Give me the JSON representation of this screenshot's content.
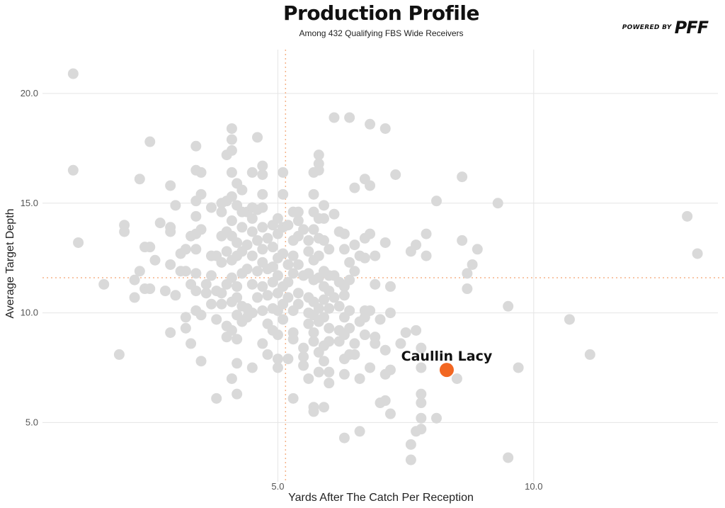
{
  "header": {
    "title": "Production Profile",
    "subtitle": "Among 432 Qualifying FBS Wide Receivers",
    "brand_prefix": "POWERED BY",
    "brand_logo": "PFF"
  },
  "chart_data": {
    "type": "scatter",
    "title": "Production Profile",
    "subtitle": "Among 432 Qualifying FBS Wide Receivers",
    "xlabel": "Yards After The Catch Per Reception",
    "ylabel": "Average Target Depth",
    "xlim": [
      0.4,
      13.6
    ],
    "ylim": [
      2.3,
      22.0
    ],
    "x_ticks": [
      5.0,
      10.0
    ],
    "x_tick_labels": [
      "5.0",
      "10.0"
    ],
    "y_ticks": [
      5.0,
      10.0,
      15.0,
      20.0
    ],
    "y_tick_labels": [
      "5.0",
      "10.0",
      "15.0",
      "20.0"
    ],
    "grid": true,
    "reference_lines": {
      "x": 5.15,
      "y": 11.6
    },
    "colors": {
      "points": "#d9d9d9",
      "highlight": "#f26722",
      "reference": "#f5b48a",
      "grid": "#e5e5e5"
    },
    "highlight": {
      "name": "Caullin Lacy",
      "x": 8.3,
      "y": 7.4
    },
    "points": [
      [
        1.0,
        20.9
      ],
      [
        1.0,
        16.5
      ],
      [
        1.1,
        13.2
      ],
      [
        1.6,
        11.3
      ],
      [
        1.9,
        8.1
      ],
      [
        2.0,
        14.0
      ],
      [
        2.0,
        13.7
      ],
      [
        2.2,
        11.5
      ],
      [
        2.2,
        10.7
      ],
      [
        2.3,
        11.9
      ],
      [
        2.3,
        16.1
      ],
      [
        2.4,
        11.1
      ],
      [
        2.4,
        13.0
      ],
      [
        2.5,
        17.8
      ],
      [
        2.5,
        13.0
      ],
      [
        2.5,
        11.1
      ],
      [
        2.6,
        12.4
      ],
      [
        2.7,
        14.1
      ],
      [
        2.8,
        11.0
      ],
      [
        2.9,
        15.8
      ],
      [
        2.9,
        13.9
      ],
      [
        2.9,
        13.7
      ],
      [
        2.9,
        12.2
      ],
      [
        2.9,
        9.1
      ],
      [
        3.0,
        14.9
      ],
      [
        3.0,
        10.8
      ],
      [
        3.1,
        12.7
      ],
      [
        3.1,
        11.9
      ],
      [
        3.2,
        12.9
      ],
      [
        3.2,
        11.9
      ],
      [
        3.2,
        9.8
      ],
      [
        3.2,
        9.3
      ],
      [
        3.3,
        13.5
      ],
      [
        3.3,
        11.3
      ],
      [
        3.3,
        8.6
      ],
      [
        3.4,
        17.6
      ],
      [
        3.4,
        16.5
      ],
      [
        3.4,
        15.1
      ],
      [
        3.4,
        14.4
      ],
      [
        3.4,
        13.6
      ],
      [
        3.4,
        12.9
      ],
      [
        3.4,
        11.8
      ],
      [
        3.4,
        11.0
      ],
      [
        3.4,
        10.1
      ],
      [
        3.5,
        16.4
      ],
      [
        3.5,
        15.4
      ],
      [
        3.5,
        13.8
      ],
      [
        3.5,
        9.9
      ],
      [
        3.5,
        7.8
      ],
      [
        3.6,
        11.3
      ],
      [
        3.6,
        10.9
      ],
      [
        3.7,
        14.8
      ],
      [
        3.7,
        12.6
      ],
      [
        3.7,
        11.7
      ],
      [
        3.7,
        10.4
      ],
      [
        3.8,
        12.6
      ],
      [
        3.8,
        11.0
      ],
      [
        3.8,
        9.7
      ],
      [
        3.8,
        6.1
      ],
      [
        3.9,
        15.0
      ],
      [
        3.9,
        14.6
      ],
      [
        3.9,
        13.5
      ],
      [
        3.9,
        12.3
      ],
      [
        3.9,
        10.9
      ],
      [
        3.9,
        10.4
      ],
      [
        4.0,
        17.2
      ],
      [
        4.0,
        15.1
      ],
      [
        4.0,
        13.7
      ],
      [
        4.0,
        12.8
      ],
      [
        4.0,
        11.3
      ],
      [
        4.0,
        9.4
      ],
      [
        4.0,
        8.9
      ],
      [
        4.1,
        18.4
      ],
      [
        4.1,
        17.9
      ],
      [
        4.1,
        17.4
      ],
      [
        4.1,
        16.4
      ],
      [
        4.1,
        15.3
      ],
      [
        4.1,
        14.2
      ],
      [
        4.1,
        13.5
      ],
      [
        4.1,
        12.4
      ],
      [
        4.1,
        11.6
      ],
      [
        4.1,
        10.5
      ],
      [
        4.1,
        9.2
      ],
      [
        4.1,
        7.0
      ],
      [
        4.2,
        15.9
      ],
      [
        4.2,
        14.9
      ],
      [
        4.2,
        13.2
      ],
      [
        4.2,
        12.6
      ],
      [
        4.2,
        11.2
      ],
      [
        4.2,
        10.7
      ],
      [
        4.2,
        9.9
      ],
      [
        4.2,
        8.8
      ],
      [
        4.2,
        7.7
      ],
      [
        4.2,
        6.3
      ],
      [
        4.3,
        15.6
      ],
      [
        4.3,
        14.6
      ],
      [
        4.3,
        13.9
      ],
      [
        4.3,
        12.8
      ],
      [
        4.3,
        11.8
      ],
      [
        4.3,
        10.3
      ],
      [
        4.3,
        9.6
      ],
      [
        4.4,
        14.6
      ],
      [
        4.4,
        13.1
      ],
      [
        4.4,
        12.0
      ],
      [
        4.4,
        10.2
      ],
      [
        4.4,
        9.8
      ],
      [
        4.5,
        16.4
      ],
      [
        4.5,
        14.8
      ],
      [
        4.5,
        14.3
      ],
      [
        4.5,
        13.7
      ],
      [
        4.5,
        12.6
      ],
      [
        4.5,
        11.3
      ],
      [
        4.5,
        10.0
      ],
      [
        4.5,
        7.5
      ],
      [
        4.6,
        18.0
      ],
      [
        4.6,
        14.7
      ],
      [
        4.6,
        13.3
      ],
      [
        4.6,
        11.9
      ],
      [
        4.6,
        10.7
      ],
      [
        4.7,
        16.7
      ],
      [
        4.7,
        16.3
      ],
      [
        4.7,
        15.4
      ],
      [
        4.7,
        14.8
      ],
      [
        4.7,
        13.9
      ],
      [
        4.7,
        12.9
      ],
      [
        4.7,
        12.3
      ],
      [
        4.7,
        11.2
      ],
      [
        4.7,
        10.1
      ],
      [
        4.7,
        8.6
      ],
      [
        4.8,
        13.4
      ],
      [
        4.8,
        12.0
      ],
      [
        4.8,
        10.8
      ],
      [
        4.8,
        9.5
      ],
      [
        4.8,
        8.1
      ],
      [
        4.9,
        14.0
      ],
      [
        4.9,
        13.0
      ],
      [
        4.9,
        12.1
      ],
      [
        4.9,
        11.4
      ],
      [
        4.9,
        10.2
      ],
      [
        4.9,
        9.2
      ],
      [
        5.0,
        14.3
      ],
      [
        5.0,
        13.6
      ],
      [
        5.0,
        12.5
      ],
      [
        5.0,
        11.7
      ],
      [
        5.0,
        10.9
      ],
      [
        5.0,
        10.1
      ],
      [
        5.0,
        9.0
      ],
      [
        5.0,
        7.9
      ],
      [
        5.0,
        7.5
      ],
      [
        5.1,
        16.4
      ],
      [
        5.1,
        15.4
      ],
      [
        5.1,
        13.9
      ],
      [
        5.1,
        12.7
      ],
      [
        5.1,
        11.2
      ],
      [
        5.1,
        10.4
      ],
      [
        5.1,
        9.7
      ],
      [
        5.2,
        14.0
      ],
      [
        5.2,
        12.2
      ],
      [
        5.2,
        11.4
      ],
      [
        5.2,
        10.7
      ],
      [
        5.2,
        7.9
      ],
      [
        5.3,
        14.6
      ],
      [
        5.3,
        13.3
      ],
      [
        5.3,
        12.6
      ],
      [
        5.3,
        11.8
      ],
      [
        5.3,
        10.1
      ],
      [
        5.3,
        9.1
      ],
      [
        5.3,
        8.8
      ],
      [
        5.3,
        6.1
      ],
      [
        5.4,
        14.6
      ],
      [
        5.4,
        14.2
      ],
      [
        5.4,
        13.5
      ],
      [
        5.4,
        12.2
      ],
      [
        5.4,
        10.9
      ],
      [
        5.4,
        10.4
      ],
      [
        5.5,
        13.8
      ],
      [
        5.5,
        11.7
      ],
      [
        5.5,
        8.4
      ],
      [
        5.5,
        8.0
      ],
      [
        5.5,
        7.6
      ],
      [
        5.6,
        13.3
      ],
      [
        5.6,
        12.8
      ],
      [
        5.6,
        11.8
      ],
      [
        5.6,
        10.7
      ],
      [
        5.6,
        10.0
      ],
      [
        5.6,
        9.5
      ],
      [
        5.6,
        7.0
      ],
      [
        5.7,
        16.4
      ],
      [
        5.7,
        15.4
      ],
      [
        5.7,
        14.6
      ],
      [
        5.7,
        13.8
      ],
      [
        5.7,
        12.4
      ],
      [
        5.7,
        11.5
      ],
      [
        5.7,
        10.5
      ],
      [
        5.7,
        9.9
      ],
      [
        5.7,
        9.1
      ],
      [
        5.7,
        8.7
      ],
      [
        5.7,
        5.7
      ],
      [
        5.7,
        5.5
      ],
      [
        5.8,
        17.2
      ],
      [
        5.8,
        16.8
      ],
      [
        5.8,
        16.5
      ],
      [
        5.8,
        14.3
      ],
      [
        5.8,
        13.4
      ],
      [
        5.8,
        12.6
      ],
      [
        5.8,
        11.6
      ],
      [
        5.8,
        10.2
      ],
      [
        5.8,
        9.6
      ],
      [
        5.8,
        8.2
      ],
      [
        5.8,
        7.3
      ],
      [
        5.9,
        14.9
      ],
      [
        5.9,
        14.3
      ],
      [
        5.9,
        13.3
      ],
      [
        5.9,
        11.9
      ],
      [
        5.9,
        11.2
      ],
      [
        5.9,
        10.6
      ],
      [
        5.9,
        9.8
      ],
      [
        5.9,
        8.5
      ],
      [
        5.9,
        7.8
      ],
      [
        5.9,
        5.7
      ],
      [
        6.0,
        12.9
      ],
      [
        6.0,
        11.7
      ],
      [
        6.0,
        11.0
      ],
      [
        6.0,
        10.2
      ],
      [
        6.0,
        9.3
      ],
      [
        6.0,
        8.7
      ],
      [
        6.0,
        7.3
      ],
      [
        6.0,
        6.8
      ],
      [
        6.1,
        18.9
      ],
      [
        6.1,
        14.5
      ],
      [
        6.1,
        11.7
      ],
      [
        6.1,
        10.7
      ],
      [
        6.2,
        13.7
      ],
      [
        6.2,
        11.4
      ],
      [
        6.2,
        10.3
      ],
      [
        6.2,
        9.2
      ],
      [
        6.2,
        8.7
      ],
      [
        6.3,
        13.6
      ],
      [
        6.3,
        12.9
      ],
      [
        6.3,
        11.2
      ],
      [
        6.3,
        10.8
      ],
      [
        6.3,
        9.8
      ],
      [
        6.3,
        9.0
      ],
      [
        6.3,
        7.9
      ],
      [
        6.3,
        7.2
      ],
      [
        6.3,
        4.3
      ],
      [
        6.4,
        18.9
      ],
      [
        6.4,
        12.3
      ],
      [
        6.4,
        11.5
      ],
      [
        6.4,
        10.1
      ],
      [
        6.4,
        9.3
      ],
      [
        6.4,
        8.1
      ],
      [
        6.5,
        15.7
      ],
      [
        6.5,
        13.1
      ],
      [
        6.5,
        11.9
      ],
      [
        6.5,
        8.6
      ],
      [
        6.5,
        8.1
      ],
      [
        6.6,
        12.6
      ],
      [
        6.6,
        9.6
      ],
      [
        6.6,
        7.0
      ],
      [
        6.6,
        4.6
      ],
      [
        6.7,
        16.1
      ],
      [
        6.7,
        13.4
      ],
      [
        6.7,
        12.5
      ],
      [
        6.7,
        10.1
      ],
      [
        6.7,
        9.8
      ],
      [
        6.7,
        9.0
      ],
      [
        6.8,
        18.6
      ],
      [
        6.8,
        15.8
      ],
      [
        6.8,
        13.6
      ],
      [
        6.8,
        10.1
      ],
      [
        6.8,
        7.5
      ],
      [
        6.9,
        12.6
      ],
      [
        6.9,
        11.3
      ],
      [
        6.9,
        8.9
      ],
      [
        6.9,
        8.6
      ],
      [
        7.0,
        9.7
      ],
      [
        7.0,
        5.9
      ],
      [
        7.1,
        18.4
      ],
      [
        7.1,
        13.2
      ],
      [
        7.1,
        8.3
      ],
      [
        7.1,
        7.2
      ],
      [
        7.1,
        6.0
      ],
      [
        7.2,
        11.2
      ],
      [
        7.2,
        10.0
      ],
      [
        7.2,
        7.4
      ],
      [
        7.2,
        5.4
      ],
      [
        7.3,
        16.3
      ],
      [
        7.4,
        8.6
      ],
      [
        7.5,
        9.1
      ],
      [
        7.6,
        12.8
      ],
      [
        7.6,
        4.0
      ],
      [
        7.6,
        3.3
      ],
      [
        7.7,
        13.1
      ],
      [
        7.7,
        9.2
      ],
      [
        7.7,
        4.6
      ],
      [
        7.8,
        8.4
      ],
      [
        7.8,
        7.5
      ],
      [
        7.8,
        6.3
      ],
      [
        7.8,
        5.9
      ],
      [
        7.8,
        5.2
      ],
      [
        7.8,
        4.7
      ],
      [
        7.9,
        13.6
      ],
      [
        7.9,
        12.6
      ],
      [
        8.1,
        15.1
      ],
      [
        8.1,
        5.2
      ],
      [
        8.5,
        7.0
      ],
      [
        8.6,
        16.2
      ],
      [
        8.6,
        13.3
      ],
      [
        8.7,
        11.8
      ],
      [
        8.7,
        11.1
      ],
      [
        8.8,
        12.2
      ],
      [
        8.9,
        12.9
      ],
      [
        9.3,
        15.0
      ],
      [
        9.5,
        10.3
      ],
      [
        9.5,
        3.4
      ],
      [
        9.7,
        7.5
      ],
      [
        10.7,
        9.7
      ],
      [
        11.1,
        8.1
      ],
      [
        13.0,
        14.4
      ],
      [
        13.2,
        12.7
      ]
    ]
  }
}
